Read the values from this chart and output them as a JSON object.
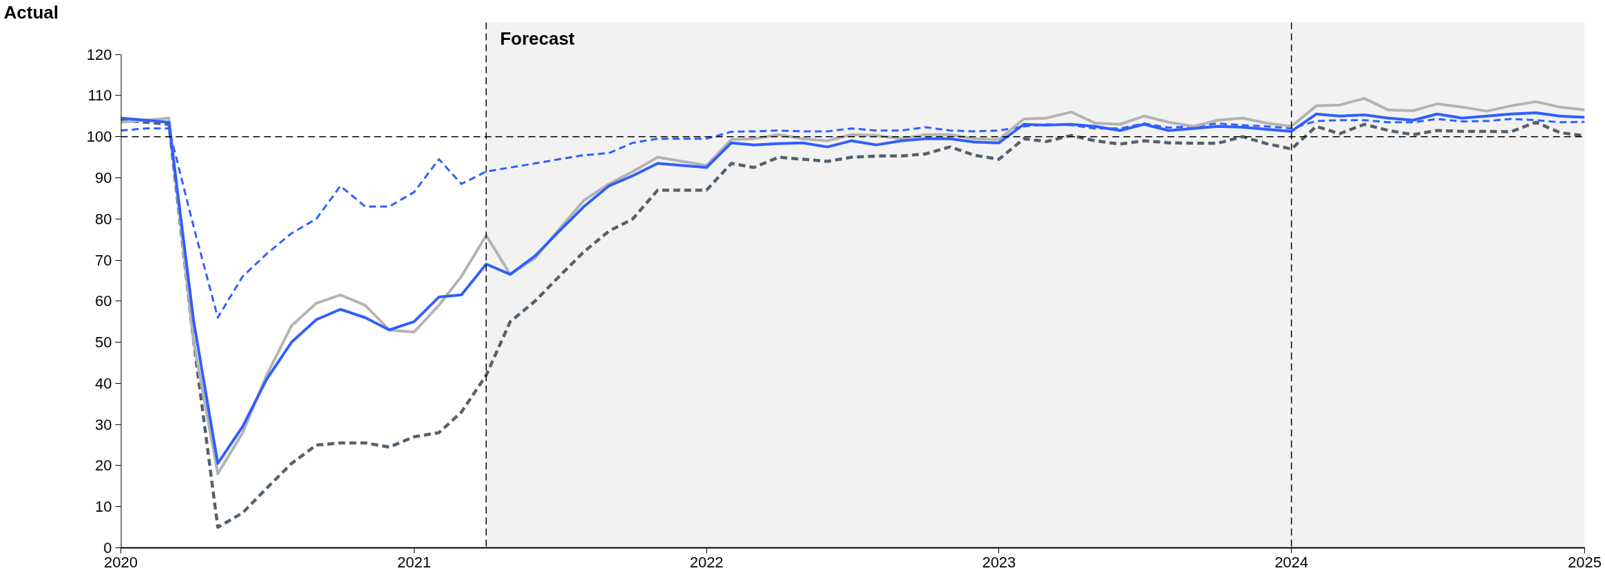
{
  "chart_data": {
    "type": "line",
    "annotations": [
      "Actual"
    ],
    "x": [
      "2020-01",
      "2020-02",
      "2020-03",
      "2020-04",
      "2020-05",
      "2020-06",
      "2020-07",
      "2020-08",
      "2020-09",
      "2020-10",
      "2020-11",
      "2020-12",
      "2021-01",
      "2021-02",
      "2021-03",
      "2021-04",
      "2021-05",
      "2021-06",
      "2021-07",
      "2021-08",
      "2021-09",
      "2021-10",
      "2021-11",
      "2021-12",
      "2022-01",
      "2022-02",
      "2022-03",
      "2022-04",
      "2022-05",
      "2022-06",
      "2022-07",
      "2022-08",
      "2022-09",
      "2022-10",
      "2022-11",
      "2022-12",
      "2023-01",
      "2023-02",
      "2023-03",
      "2023-04",
      "2023-05",
      "2023-06",
      "2023-07",
      "2023-08",
      "2023-09",
      "2023-10",
      "2023-11",
      "2023-12",
      "2024-01",
      "2024-02",
      "2024-03",
      "2024-04",
      "2024-05",
      "2024-06",
      "2024-07",
      "2024-08",
      "2024-09",
      "2024-10",
      "2024-11",
      "2024-12",
      "2025-01"
    ],
    "series": [
      {
        "color": "#2f5fff",
        "line_style": "dashed",
        "values": [
          101.5,
          102,
          102,
          78,
          56,
          66,
          71.5,
          76.5,
          80,
          88,
          83,
          83,
          86.5,
          94.5,
          88.5,
          91.5,
          92.5,
          93.5,
          94.5,
          95.5,
          96,
          98.5,
          99.5,
          99.5,
          99.5,
          101.2,
          101.3,
          101.5,
          101.3,
          101.3,
          102,
          101.5,
          101.5,
          102.3,
          101.5,
          101.3,
          101.5,
          102.5,
          103,
          102.8,
          102,
          102,
          103.2,
          102.2,
          102.5,
          103.2,
          102.8,
          102.5,
          102,
          103.8,
          104,
          104,
          103.5,
          103.5,
          104.3,
          103.7,
          103.8,
          104.3,
          104,
          103.5,
          103.6
        ]
      },
      {
        "color": "#55616b",
        "line_style": "dashed",
        "values": [
          104,
          103.5,
          103,
          50,
          5,
          8.5,
          14.5,
          20.5,
          25,
          25.5,
          25.5,
          24.5,
          27,
          28,
          33,
          42,
          55,
          60,
          66,
          72,
          77,
          80,
          87,
          87,
          87,
          93.5,
          92.5,
          95,
          94.5,
          94,
          95,
          95.3,
          95.3,
          95.8,
          97.5,
          95.5,
          94.5,
          99.5,
          98.8,
          100.3,
          99,
          98.2,
          99,
          98.5,
          98.4,
          98.4,
          100,
          98.3,
          97,
          102.5,
          100.7,
          103,
          101.5,
          100.5,
          101.5,
          101.3,
          101.3,
          101.2,
          103.5,
          101,
          100.2
        ]
      },
      {
        "color": "#b3b3b3",
        "line_style": "solid",
        "values": [
          103.5,
          104,
          104.5,
          50,
          18,
          28,
          42,
          54,
          59.5,
          61.5,
          59,
          53,
          52.5,
          59,
          66,
          76,
          66.5,
          70.5,
          77.5,
          84.5,
          88.5,
          91.5,
          95,
          94,
          93,
          99.3,
          99.5,
          100.5,
          99.5,
          99,
          100.5,
          100.3,
          99.5,
          100.5,
          100.5,
          99.5,
          99.3,
          104.3,
          104.5,
          106,
          103.3,
          103,
          105,
          103.5,
          102.5,
          104,
          104.5,
          103.3,
          102.5,
          107.5,
          107.7,
          109.3,
          106.5,
          106.3,
          108,
          107.2,
          106.2,
          107.5,
          108.5,
          107.2,
          106.5
        ]
      },
      {
        "color": "#2f5fff",
        "line_style": "solid",
        "values": [
          104.5,
          104,
          103.5,
          55,
          20.5,
          29.5,
          41,
          50,
          55.5,
          58,
          56,
          53,
          55,
          61,
          61.5,
          69,
          66.5,
          71,
          77,
          83,
          88,
          90.5,
          93.5,
          93,
          92.5,
          98.5,
          98,
          98.3,
          98.5,
          97.5,
          99,
          98,
          99,
          99.5,
          99.5,
          98.7,
          98.5,
          103,
          102.8,
          103,
          102.5,
          101.5,
          103,
          101.5,
          102,
          102.5,
          102.3,
          101.8,
          101.3,
          105.5,
          105,
          105.3,
          104.5,
          104,
          105.5,
          104.5,
          105,
          105.5,
          105.8,
          105,
          104.7
        ]
      }
    ],
    "xlim": [
      "2020-01",
      "2025-01"
    ],
    "xticks": [
      {
        "value": "2020-01",
        "label": "2020"
      },
      {
        "value": "2021-01",
        "label": "2021"
      },
      {
        "value": "2022-01",
        "label": "2022"
      },
      {
        "value": "2023-01",
        "label": "2023"
      },
      {
        "value": "2024-01",
        "label": "2024"
      },
      {
        "value": "2025-01",
        "label": "2025"
      }
    ],
    "ylim": [
      0,
      120
    ],
    "yticks": [
      0,
      10,
      20,
      30,
      40,
      50,
      60,
      70,
      80,
      90,
      100,
      110,
      120
    ],
    "bands": [
      {
        "axis": "x",
        "from": "2021-04",
        "to": "2025-01",
        "label": "Forecast",
        "color": "#f2f2f2"
      }
    ],
    "ref_lines": [
      {
        "axis": "y",
        "value": 100,
        "line_style": "dashed",
        "color": "#000000"
      },
      {
        "axis": "x",
        "value": "2021-04",
        "line_style": "dashed",
        "color": "#000000"
      },
      {
        "axis": "x",
        "value": "2024-01",
        "line_style": "dashed",
        "color": "#000000"
      }
    ],
    "grid": false,
    "marker": "none"
  }
}
